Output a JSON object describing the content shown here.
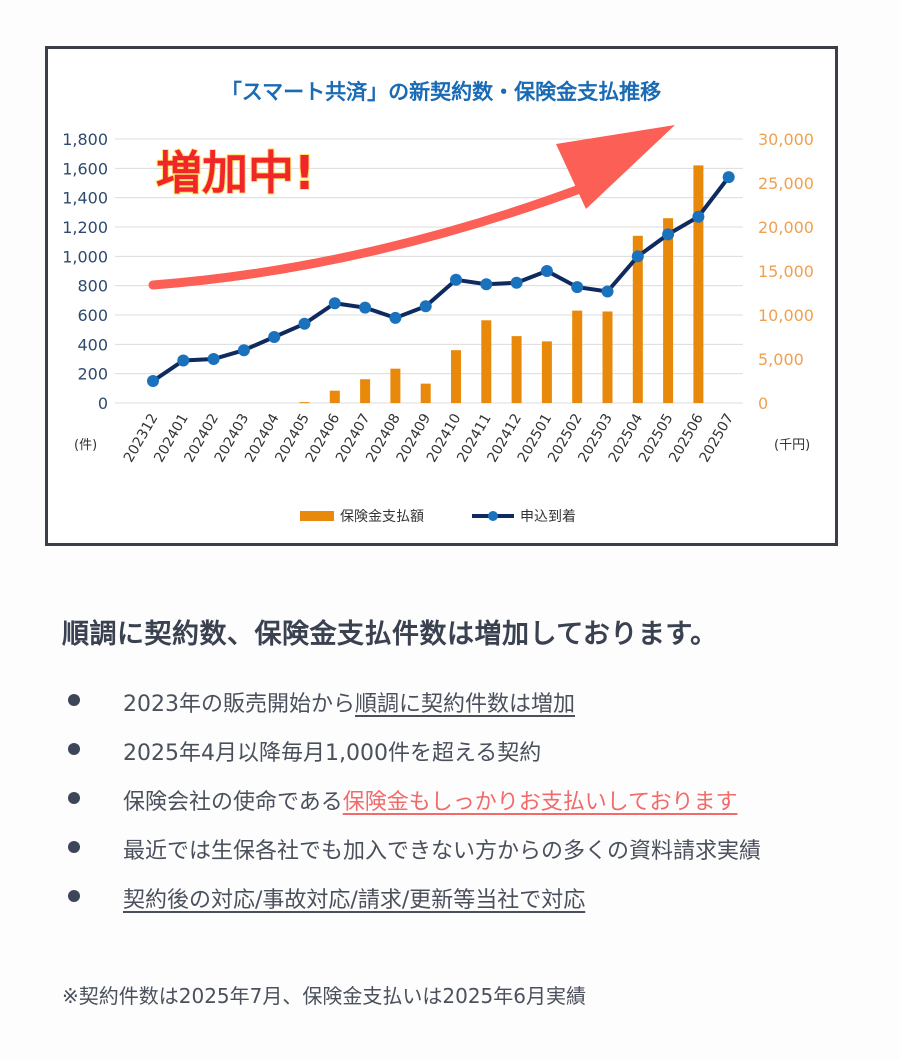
{
  "annotation": {
    "label": "増加中!"
  },
  "chart_data": {
    "type": "bar+line",
    "title": "「スマート共済」の新契約数・保険金支払推移",
    "categories": [
      "202312",
      "202401",
      "202402",
      "202403",
      "202404",
      "202405",
      "202406",
      "202407",
      "202408",
      "202409",
      "202410",
      "202411",
      "202412",
      "202501",
      "202502",
      "202503",
      "202504",
      "202505",
      "202506",
      "202507"
    ],
    "series": [
      {
        "name": "保険金支払額",
        "type": "bar",
        "axis": "right",
        "color": "#e8890c",
        "values": [
          null,
          null,
          null,
          null,
          null,
          100,
          1400,
          2700,
          3900,
          2200,
          6000,
          9400,
          7600,
          7000,
          10500,
          10400,
          19000,
          21000,
          27000,
          null
        ]
      },
      {
        "name": "申込到着",
        "type": "line",
        "axis": "left",
        "color": "#0f2a5e",
        "marker_color": "#1a72bd",
        "values": [
          150,
          290,
          300,
          360,
          450,
          540,
          680,
          650,
          580,
          660,
          840,
          810,
          820,
          900,
          790,
          760,
          1000,
          1150,
          1270,
          1540
        ]
      }
    ],
    "left_axis": {
      "unit": "(件)",
      "ylim": [
        0,
        1800
      ],
      "ticks": [
        "0",
        "200",
        "400",
        "600",
        "800",
        "1,000",
        "1,200",
        "1,400",
        "1,600",
        "1,800"
      ]
    },
    "right_axis": {
      "unit": "(千円)",
      "ylim": [
        0,
        30000
      ],
      "ticks": [
        "0",
        "5,000",
        "10,000",
        "15,000",
        "20,000",
        "25,000",
        "30,000"
      ]
    },
    "grid": true,
    "legend": "bottom-center"
  },
  "text": {
    "heading": "順調に契約数、保険金支払件数は増加しております。",
    "bullets": [
      {
        "plain": "2023年の販売開始から",
        "link": "順調に契約件数は増加"
      },
      {
        "plain": "2025年4月以降毎月1,000件を超える契約"
      },
      {
        "plain": "保険会社の使命である",
        "link": "保険金もしっかりお支払いしております"
      },
      {
        "plain": "最近では生保各社でも加入できない方からの多くの資料請求実績"
      },
      {
        "link": "契約後の対応/事故対応/請求/更新等当社で対応"
      }
    ],
    "note": "※契約件数は2025年7月、保険金支払いは2025年6月実績"
  }
}
